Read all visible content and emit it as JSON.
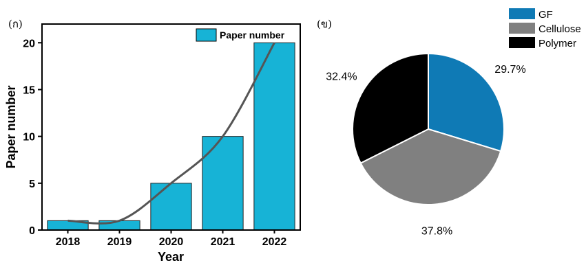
{
  "panel_labels": {
    "a": "(ก)",
    "b": "(ข)"
  },
  "chart_data": [
    {
      "type": "bar",
      "categories": [
        "2018",
        "2019",
        "2020",
        "2021",
        "2022"
      ],
      "series": [
        {
          "name": "Paper number",
          "values": [
            1,
            1,
            5,
            10,
            20
          ]
        }
      ],
      "trend_line": [
        1,
        1,
        5,
        10,
        20
      ],
      "xlabel": "Year",
      "ylabel": "Paper number",
      "ylim": [
        0,
        22
      ],
      "yticks": [
        "0",
        "5",
        "10",
        "15",
        "20"
      ],
      "legend": "top-right",
      "grid": false,
      "colors": {
        "bar": "#17b3d6",
        "line": "#555555"
      }
    },
    {
      "type": "pie",
      "labels": [
        "GF",
        "Cellulose",
        "Polymer"
      ],
      "values": [
        29.7,
        37.8,
        32.4
      ],
      "value_labels": [
        "29.7%",
        "37.8%",
        "32.4%"
      ],
      "legend": "top-right",
      "colors": [
        "#0f7ab5",
        "#808080",
        "#000000"
      ]
    }
  ]
}
